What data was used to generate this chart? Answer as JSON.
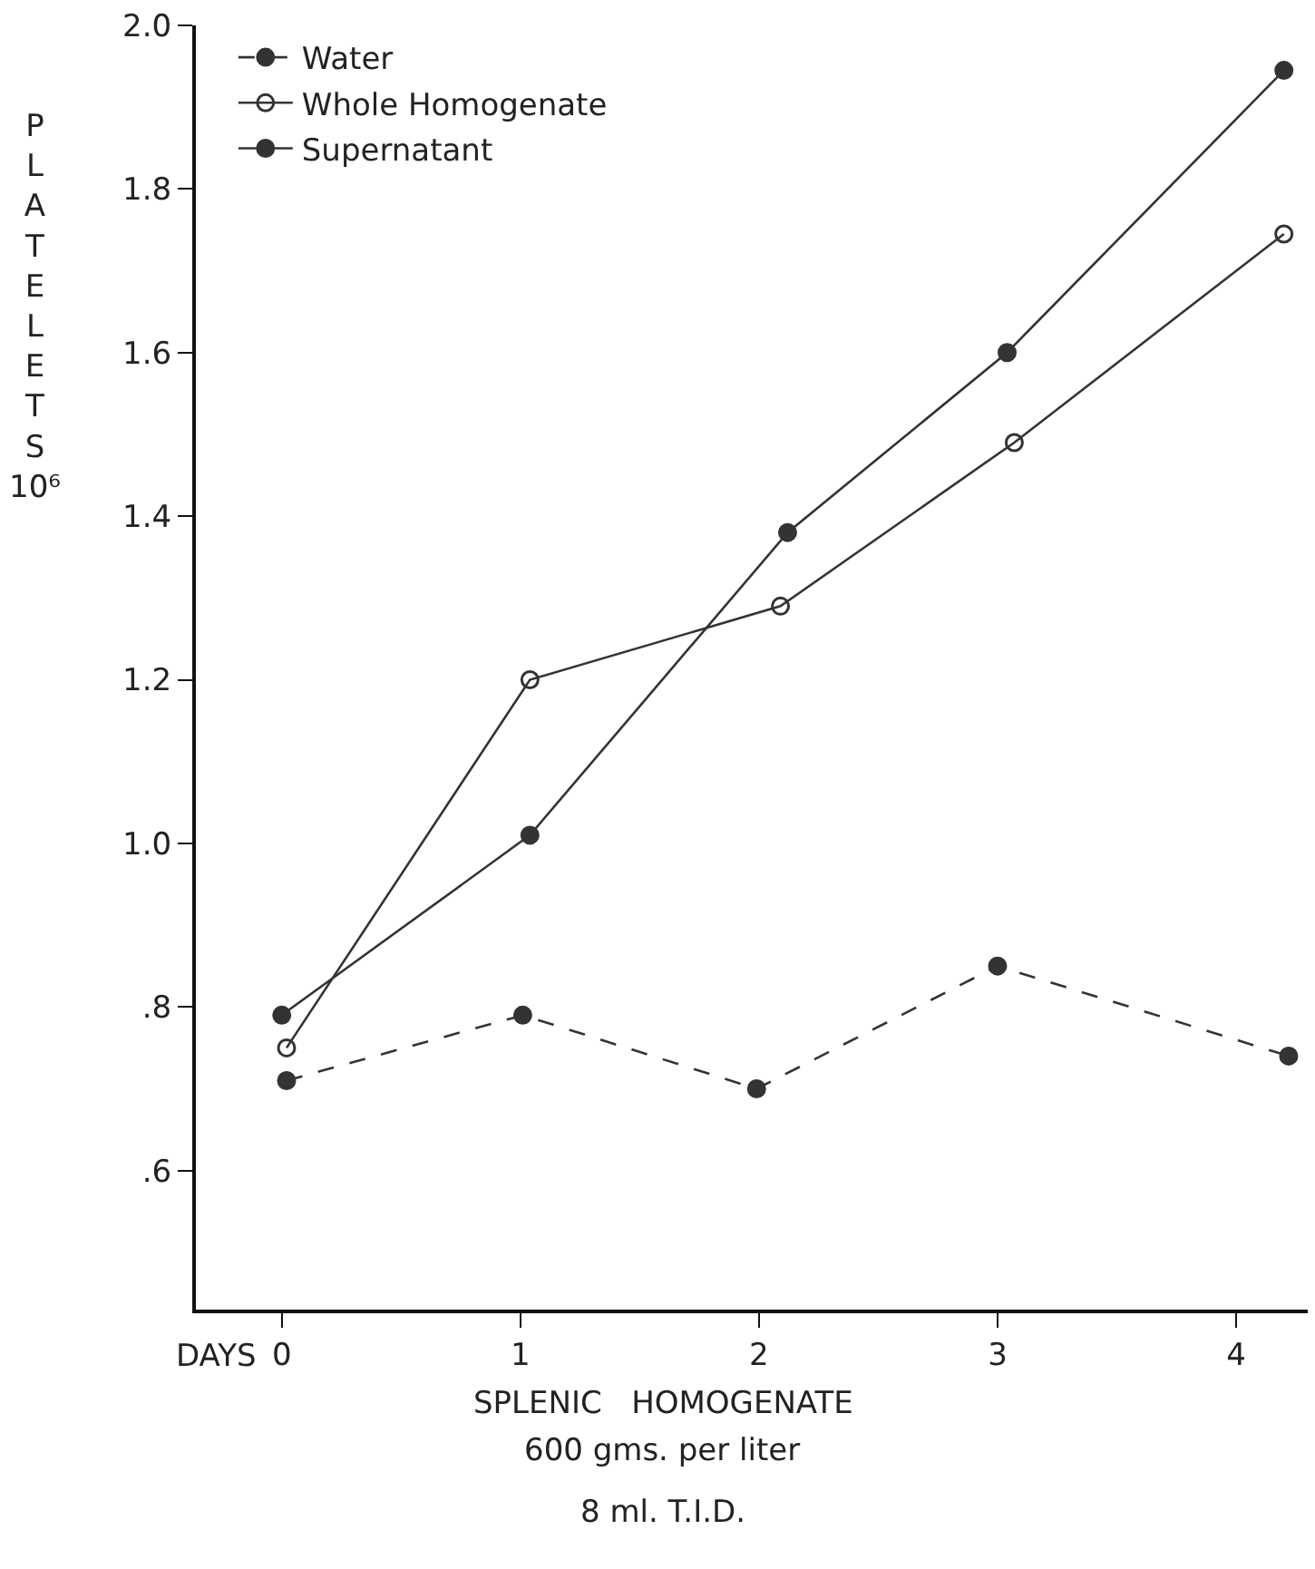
{
  "chart_data": {
    "type": "line",
    "xlabel": "SPLENIC HOMOGENATE",
    "ylabel": "PLATELETS 10⁶",
    "annotations": [
      "DAYS",
      "600 gms. per liter",
      "8 ml. T.I.D."
    ],
    "xlim": [
      -0.36,
      4.3
    ],
    "xticks": [
      0,
      1,
      2,
      3,
      4
    ],
    "ylim": [
      0.43,
      2.0
    ],
    "yticks": [
      {
        "value": 0.6,
        "label": ".6"
      },
      {
        "value": 0.8,
        "label": ".8"
      },
      {
        "value": 1.0,
        "label": "1.0"
      },
      {
        "value": 1.2,
        "label": "1.2"
      },
      {
        "value": 1.4,
        "label": "1.4"
      },
      {
        "value": 1.6,
        "label": "1.6"
      },
      {
        "value": 1.8,
        "label": "1.8"
      },
      {
        "value": 2.0,
        "label": "2.0"
      }
    ],
    "legend": "top left",
    "series": [
      {
        "name": "Water",
        "color": "#333333",
        "line_style": "dashed",
        "marker": "circle",
        "x": [
          0.02,
          1.01,
          1.99,
          3.0,
          4.22
        ],
        "values": [
          0.71,
          0.79,
          0.7,
          0.85,
          0.74
        ]
      },
      {
        "name": "Whole Homogenate",
        "color": "#333333",
        "line_style": "solid",
        "marker": "circle-open",
        "x": [
          0.02,
          1.04,
          2.09,
          3.07,
          4.2
        ],
        "values": [
          0.75,
          1.2,
          1.29,
          1.49,
          1.745
        ]
      },
      {
        "name": "Supernatant",
        "color": "#333333",
        "line_style": "solid",
        "marker": "circle",
        "x": [
          0.0,
          1.04,
          2.12,
          3.04,
          4.2
        ],
        "values": [
          0.79,
          1.01,
          1.38,
          1.6,
          1.945
        ]
      }
    ]
  }
}
